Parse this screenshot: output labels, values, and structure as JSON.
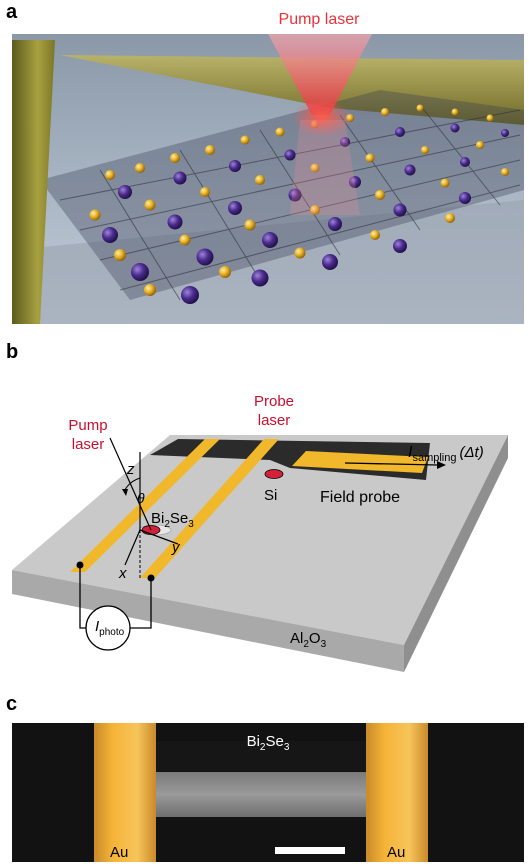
{
  "panel_a": {
    "letter": "a",
    "pump_label": "Pump laser",
    "colors": {
      "pump": "#e8323a",
      "bi_atom": "#4b2a8e",
      "se_atom": "#e6b023",
      "electrode": "#8f8a2a"
    }
  },
  "panel_b": {
    "letter": "b",
    "probe_label_1": "Probe",
    "probe_label_2": "laser",
    "pump_label_1": "Pump",
    "pump_label_2": "laser",
    "isampling_main": "I",
    "isampling_sub": "sampling",
    "isampling_arg": "(Δt)",
    "si_label": "Si",
    "field_probe_label": "Field probe",
    "axis_z": "z",
    "axis_theta": "θ",
    "axis_y": "y",
    "axis_x": "x",
    "bise_1": "Bi",
    "bise_2": "2",
    "bise_3": "Se",
    "bise_4": "3",
    "iphoto_main": "I",
    "iphoto_sub": "photo",
    "al_1": "Al",
    "al_2": "2",
    "al_3": "O",
    "al_4": "3",
    "colors": {
      "gold": "#f0b82a",
      "substrate": "#c8c8c8",
      "silicon": "#2b2b2b",
      "red": "#d4213a"
    }
  },
  "panel_c": {
    "letter": "c",
    "bise_1": "Bi",
    "bise_2": "2",
    "bise_3": "Se",
    "bise_4": "3",
    "au_left": "Au",
    "au_right": "Au",
    "colors": {
      "gold": "#f5b437",
      "background": "#121212",
      "flake": "#8e8e8e"
    }
  }
}
